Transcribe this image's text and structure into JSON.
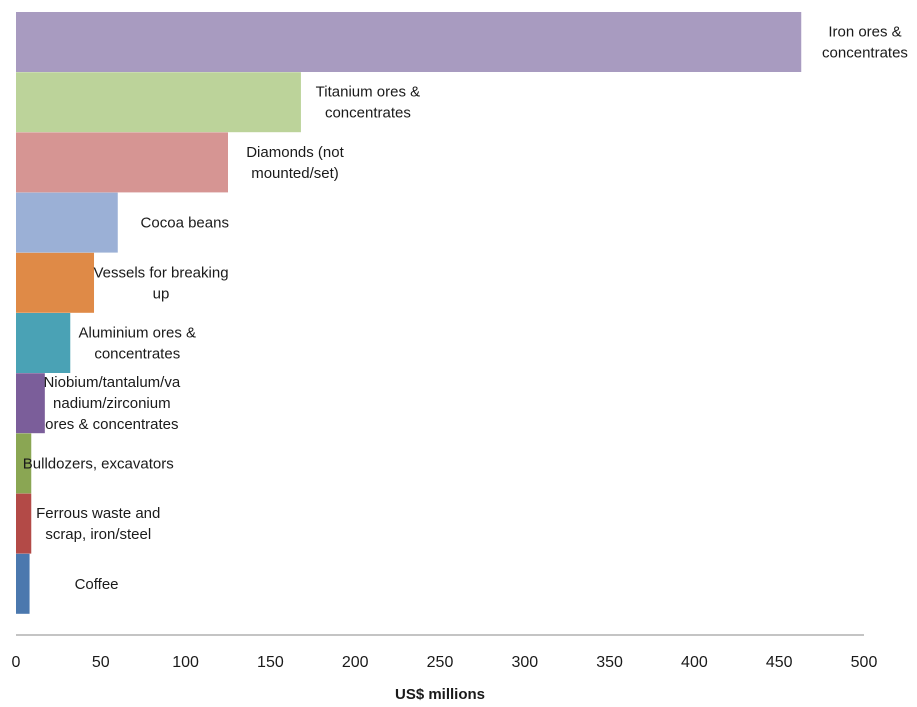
{
  "chart_data": {
    "type": "bar",
    "orientation": "horizontal",
    "title": "",
    "xlabel": "US$ millions",
    "ylabel": "",
    "xlim": [
      0,
      500
    ],
    "x_ticks": [
      "0",
      "50",
      "100",
      "150",
      "200",
      "250",
      "300",
      "350",
      "400",
      "450",
      "500"
    ],
    "grid": false,
    "legend": "none",
    "categories": [
      "Iron ores & concentrates",
      "Titanium ores & concentrates",
      "Diamonds (not mounted/set)",
      "Cocoa beans",
      "Vessels for breaking up",
      "Aluminium ores & concentrates",
      "Niobium/tantalum/vanadium/zirconium ores & concentrates",
      "Bulldozers, excavators",
      "Ferrous waste and scrap, iron/steel",
      "Coffee"
    ],
    "label_lines": [
      [
        "Iron ores &",
        "concentrates"
      ],
      [
        "Titanium ores &",
        "concentrates"
      ],
      [
        "Diamonds (not",
        "mounted/set)"
      ],
      [
        "Cocoa beans"
      ],
      [
        "Vessels for breaking",
        "up"
      ],
      [
        "Aluminium ores &",
        "concentrates"
      ],
      [
        "Niobium/tantalum/va",
        "nadium/zirconium",
        "ores & concentrates"
      ],
      [
        "Bulldozers, excavators"
      ],
      [
        "Ferrous waste and",
        "scrap, iron/steel"
      ],
      [
        "Coffee"
      ]
    ],
    "values": [
      463,
      168,
      125,
      60,
      46,
      32,
      17,
      9,
      9,
      8
    ],
    "colors": [
      "#a89bc0",
      "#bcd39a",
      "#d69593",
      "#9bb0d6",
      "#df8a47",
      "#4aa2b5",
      "#7b5e9a",
      "#8aa653",
      "#b34a47",
      "#4b78ae"
    ]
  }
}
